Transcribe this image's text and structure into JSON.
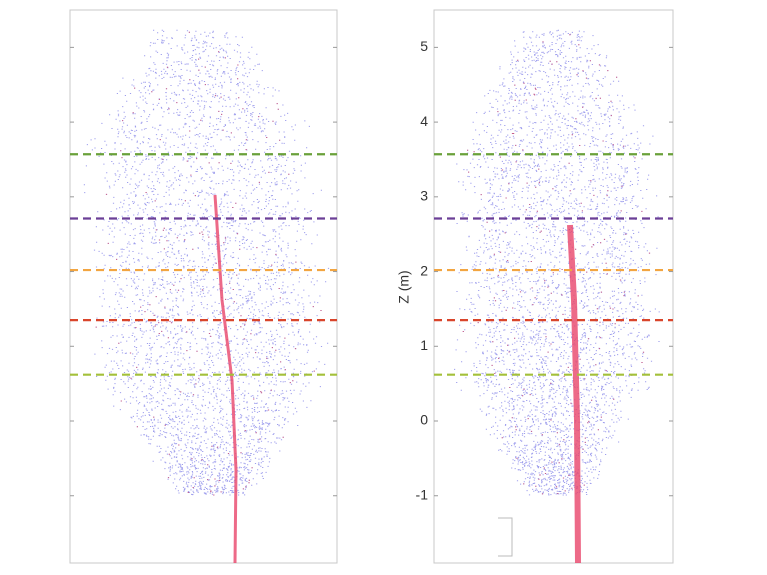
{
  "chart_data": [
    {
      "type": "scatter",
      "ylim": [
        -1.9,
        5.5
      ],
      "reference_lines": [
        {
          "value": 3.57,
          "color": "#6aa13a"
        },
        {
          "value": 2.71,
          "color": "#6b3f96"
        },
        {
          "value": 2.02,
          "color": "#f2a541"
        },
        {
          "value": 1.35,
          "color": "#d9452b"
        },
        {
          "value": 0.62,
          "color": "#a4c03a"
        }
      ]
    },
    {
      "type": "scatter",
      "ylabel": "Z (m)",
      "ylim": [
        -1.9,
        5.5
      ],
      "yticks": [
        -1,
        0,
        1,
        2,
        3,
        4,
        5
      ],
      "reference_lines": [
        {
          "value": 3.57,
          "color": "#6aa13a"
        },
        {
          "value": 2.71,
          "color": "#6b3f96"
        },
        {
          "value": 2.02,
          "color": "#f2a541"
        },
        {
          "value": 1.35,
          "color": "#d9452b"
        },
        {
          "value": 0.62,
          "color": "#a4c03a"
        }
      ]
    }
  ]
}
